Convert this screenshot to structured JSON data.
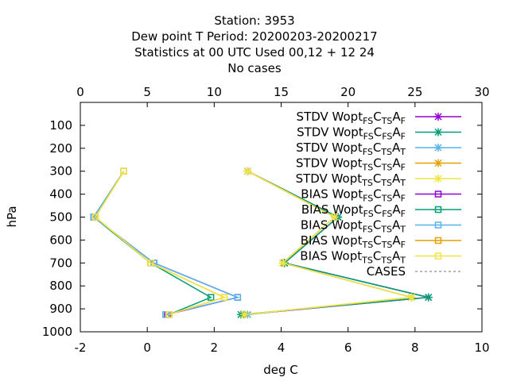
{
  "title_lines": [
    "Station:      3953",
    "Dew point T  Period: 20200203-20200217",
    "Statistics at 00 UTC  Used  00,12  + 12 24",
    "No cases"
  ],
  "chart_data": {
    "type": "line",
    "xlabel": "deg C",
    "ylabel": "hPa",
    "xlim": [
      -2,
      10
    ],
    "ylim": [
      1000,
      0
    ],
    "x_ticks": [
      "-2",
      "0",
      "2",
      "4",
      "6",
      "8",
      "10"
    ],
    "x_tick_values": [
      -2,
      0,
      2,
      4,
      6,
      8,
      10
    ],
    "x2_ticks": [
      "0",
      "5",
      "10",
      "15",
      "20",
      "25",
      "30"
    ],
    "x2_tick_values": [
      0,
      5,
      10,
      15,
      20,
      25,
      30
    ],
    "x2lim": [
      0,
      30
    ],
    "y_ticks": [
      "100",
      "200",
      "300",
      "400",
      "500",
      "600",
      "700",
      "800",
      "900",
      "1000"
    ],
    "y_tick_values": [
      100,
      200,
      300,
      400,
      500,
      600,
      700,
      800,
      900,
      1000
    ],
    "grid": false,
    "legend_position": "top-right",
    "series": [
      {
        "name": "STDV Wopt_FS C_TS A_F",
        "label_parts": [
          "STDV Wopt",
          "FS",
          "C",
          "TS",
          "A",
          "F"
        ],
        "color": "#9400d3",
        "marker": "x",
        "x": [
          3.0,
          5.7,
          4.1,
          8.4,
          2.9
        ],
        "y": [
          300,
          500,
          700,
          850,
          925
        ]
      },
      {
        "name": "STDV Wopt_FS C_FS A_F",
        "label_parts": [
          "STDV Wopt",
          "FS",
          "C",
          "FS",
          "A",
          "F"
        ],
        "color": "#009e73",
        "marker": "x",
        "x": [
          3.0,
          5.7,
          4.1,
          8.4,
          2.8
        ],
        "y": [
          300,
          500,
          700,
          850,
          925
        ]
      },
      {
        "name": "STDV Wopt_FS C_TS A_T",
        "label_parts": [
          "STDV Wopt",
          "FS",
          "C",
          "TS",
          "A",
          "T"
        ],
        "color": "#56b4e9",
        "marker": "x",
        "x": [
          3.0,
          5.6,
          4.05,
          7.9,
          3.0
        ],
        "y": [
          300,
          500,
          700,
          850,
          925
        ]
      },
      {
        "name": "STDV Wopt_TS C_TS A_F",
        "label_parts": [
          "STDV Wopt",
          "TS",
          "C",
          "TS",
          "A",
          "F"
        ],
        "color": "#e69f00",
        "marker": "x",
        "x": [
          3.0,
          5.6,
          4.05,
          7.9,
          2.9
        ],
        "y": [
          300,
          500,
          700,
          850,
          925
        ]
      },
      {
        "name": "STDV Wopt_TS C_TS A_T",
        "label_parts": [
          "STDV Wopt",
          "TS",
          "C",
          "TS",
          "A",
          "T"
        ],
        "color": "#f0e442",
        "marker": "x",
        "x": [
          3.0,
          5.6,
          4.05,
          7.9,
          2.9
        ],
        "y": [
          300,
          500,
          700,
          850,
          925
        ]
      },
      {
        "name": "BIAS Wopt_FS C_TS A_F",
        "label_parts": [
          "BIAS Wopt",
          "FS",
          "C",
          "TS",
          "A",
          "F"
        ],
        "color": "#9400d3",
        "marker": "s",
        "x": [
          -0.7,
          -1.6,
          0.2,
          2.7,
          0.6
        ],
        "y": [
          300,
          500,
          700,
          850,
          925
        ]
      },
      {
        "name": "BIAS Wopt_FS C_FS A_F",
        "label_parts": [
          "BIAS Wopt",
          "FS",
          "C",
          "FS",
          "A",
          "F"
        ],
        "color": "#009e73",
        "marker": "s",
        "x": [
          -0.7,
          -1.6,
          0.1,
          1.9,
          0.65
        ],
        "y": [
          300,
          500,
          700,
          850,
          925
        ]
      },
      {
        "name": "BIAS Wopt_FS C_TS A_T",
        "label_parts": [
          "BIAS Wopt",
          "FS",
          "C",
          "TS",
          "A",
          "T"
        ],
        "color": "#56b4e9",
        "marker": "s",
        "x": [
          -0.7,
          -1.6,
          0.2,
          2.7,
          0.55
        ],
        "y": [
          300,
          500,
          700,
          850,
          925
        ]
      },
      {
        "name": "BIAS Wopt_TS C_TS A_F",
        "label_parts": [
          "BIAS Wopt",
          "TS",
          "C",
          "TS",
          "A",
          "F"
        ],
        "color": "#e69f00",
        "marker": "s",
        "x": [
          -0.7,
          -1.55,
          0.1,
          2.3,
          0.65
        ],
        "y": [
          300,
          500,
          700,
          850,
          925
        ]
      },
      {
        "name": "BIAS Wopt_TS C_TS A_T",
        "label_parts": [
          "BIAS Wopt",
          "TS",
          "C",
          "TS",
          "A",
          "T"
        ],
        "color": "#f0e442",
        "marker": "s",
        "x": [
          -0.7,
          -1.55,
          0.1,
          2.3,
          0.65
        ],
        "y": [
          300,
          500,
          700,
          850,
          925
        ]
      },
      {
        "name": "CASES",
        "label_parts": [
          "CASES"
        ],
        "color": "#a0a0a0",
        "marker": "none",
        "dashed": true,
        "x": [],
        "y": []
      }
    ]
  }
}
